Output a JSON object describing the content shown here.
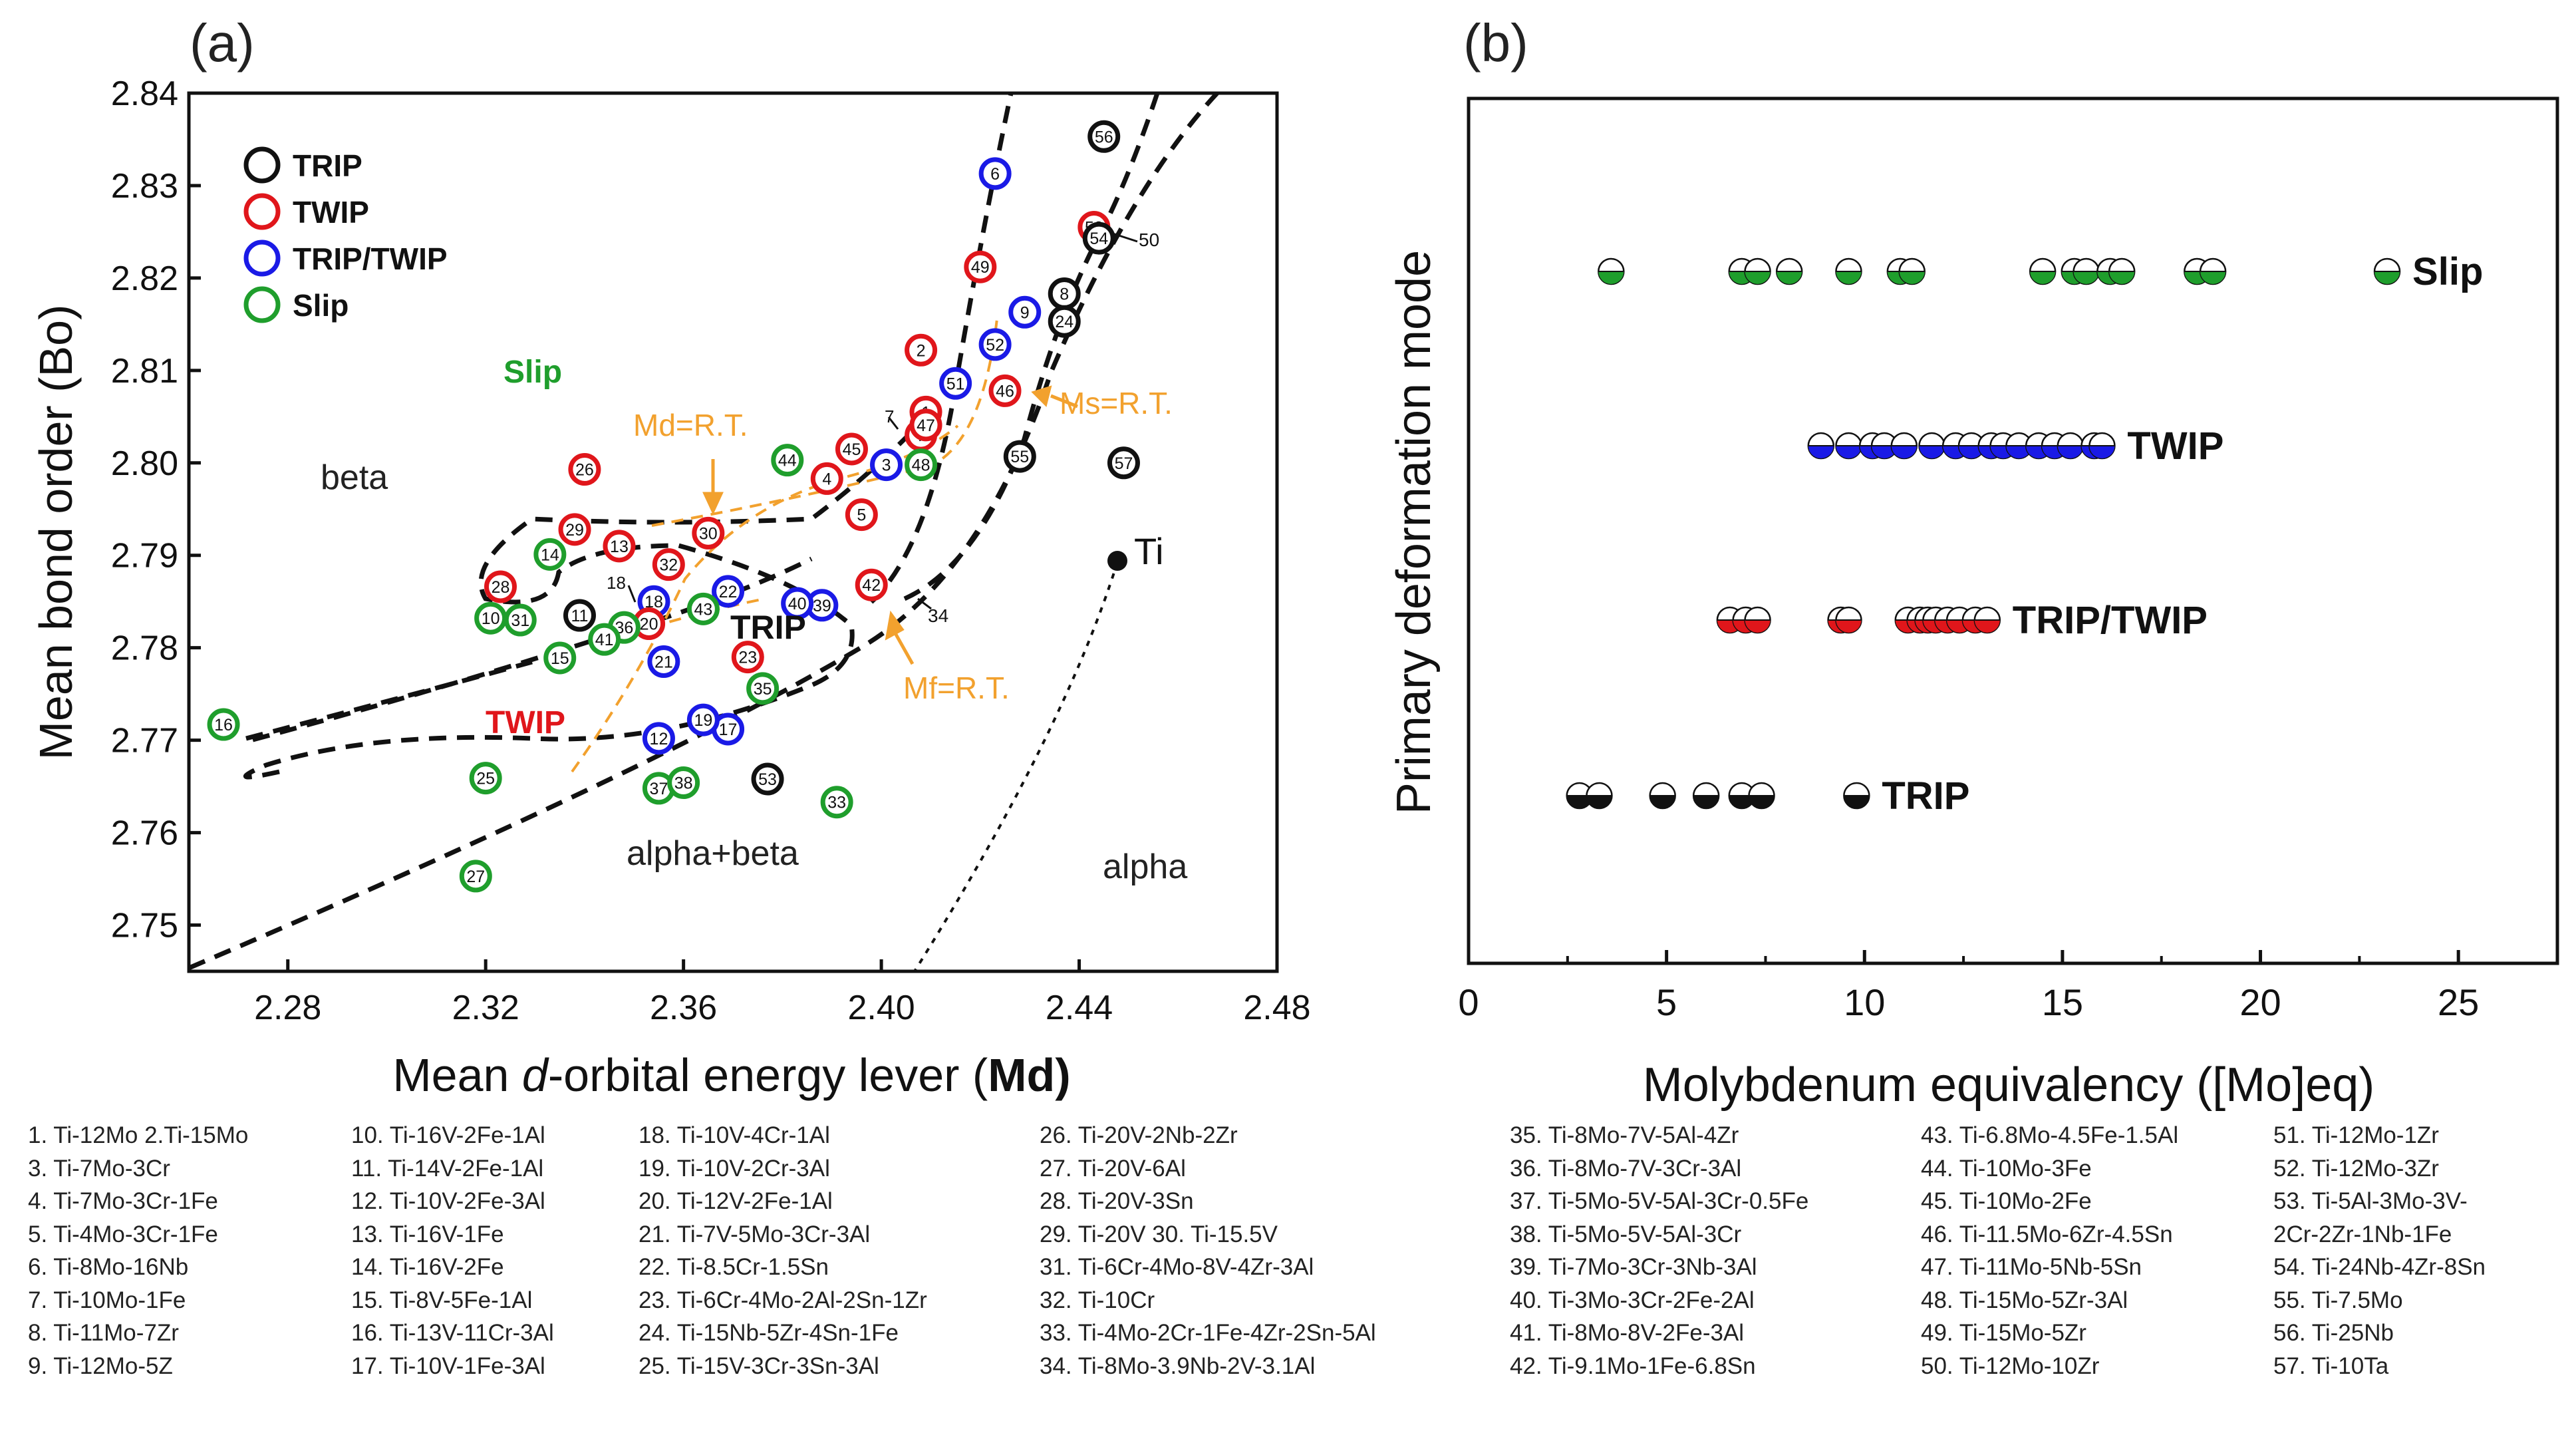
{
  "chart_data": [
    {
      "panel_label": "(a)",
      "type": "scatter",
      "xlabel_prefix": "Mean ",
      "xlabel_italic": "d",
      "xlabel_suffix": "-orbital energy lever (",
      "xlabel_bold": "Md",
      "xlabel_end": ")",
      "ylabel": "Mean bond order (Bo)",
      "xlim": [
        2.26,
        2.48
      ],
      "ylim": [
        2.745,
        2.84
      ],
      "xticks": [
        2.28,
        2.32,
        2.36,
        2.4,
        2.44,
        2.48
      ],
      "xtick_labels": [
        "2.28",
        "2.32",
        "2.36",
        "2.40",
        "2.44",
        "2.48"
      ],
      "yticks": [
        2.75,
        2.76,
        2.77,
        2.78,
        2.79,
        2.8,
        2.81,
        2.82,
        2.83,
        2.84
      ],
      "ytick_labels": [
        "2.75",
        "2.76",
        "2.77",
        "2.78",
        "2.79",
        "2.80",
        "2.81",
        "2.82",
        "2.83",
        "2.84"
      ],
      "legend": [
        {
          "name": "TRIP",
          "color": "#111111"
        },
        {
          "name": "TWIP",
          "color": "#e0161b"
        },
        {
          "name": "TRIP/TWIP",
          "color": "#1a1ae6"
        },
        {
          "name": "Slip",
          "color": "#1f9e2c"
        }
      ],
      "region_labels": {
        "slip": "Slip",
        "beta": "beta",
        "trip": "TRIP",
        "twip": "TWIP",
        "alpha_beta": "alpha+beta",
        "alpha": "alpha"
      },
      "annotations": {
        "md_rt": "Md=R.T.",
        "ms_rt": "Ms=R.T.",
        "mf_rt": "Mf=R.T.",
        "ti": "Ti"
      },
      "points": [
        {
          "id": "1",
          "x": 2.409,
          "y": 2.8055,
          "mode": "TWIP"
        },
        {
          "id": "2",
          "x": 2.408,
          "y": 2.8122,
          "mode": "TWIP"
        },
        {
          "id": "3",
          "x": 2.401,
          "y": 2.7998,
          "mode": "TRIP/TWIP"
        },
        {
          "id": "4",
          "x": 2.389,
          "y": 2.7983,
          "mode": "TWIP"
        },
        {
          "id": "5",
          "x": 2.396,
          "y": 2.7944,
          "mode": "TWIP"
        },
        {
          "id": "6",
          "x": 2.423,
          "y": 2.8313,
          "mode": "TRIP/TWIP"
        },
        {
          "id": "7",
          "x": 2.408,
          "y": 2.803,
          "mode": "TWIP"
        },
        {
          "id": "8",
          "x": 2.437,
          "y": 2.8183,
          "mode": "TRIP"
        },
        {
          "id": "9",
          "x": 2.429,
          "y": 2.8163,
          "mode": "TRIP/TWIP"
        },
        {
          "id": "10",
          "x": 2.321,
          "y": 2.7832,
          "mode": "Slip"
        },
        {
          "id": "11",
          "x": 2.339,
          "y": 2.7835,
          "mode": "TRIP"
        },
        {
          "id": "12",
          "x": 2.355,
          "y": 2.7702,
          "mode": "TRIP/TWIP"
        },
        {
          "id": "13",
          "x": 2.347,
          "y": 2.791,
          "mode": "TWIP"
        },
        {
          "id": "14",
          "x": 2.333,
          "y": 2.7901,
          "mode": "Slip"
        },
        {
          "id": "15",
          "x": 2.335,
          "y": 2.7789,
          "mode": "Slip"
        },
        {
          "id": "16",
          "x": 2.267,
          "y": 2.7717,
          "mode": "Slip"
        },
        {
          "id": "17",
          "x": 2.369,
          "y": 2.7712,
          "mode": "TRIP/TWIP"
        },
        {
          "id": "18",
          "x": 2.354,
          "y": 2.785,
          "mode": "TRIP/TWIP"
        },
        {
          "id": "19",
          "x": 2.364,
          "y": 2.7722,
          "mode": "TRIP/TWIP"
        },
        {
          "id": "20",
          "x": 2.353,
          "y": 2.7826,
          "mode": "TWIP"
        },
        {
          "id": "21",
          "x": 2.356,
          "y": 2.7785,
          "mode": "TRIP/TWIP"
        },
        {
          "id": "22",
          "x": 2.369,
          "y": 2.7861,
          "mode": "TRIP/TWIP"
        },
        {
          "id": "23",
          "x": 2.373,
          "y": 2.779,
          "mode": "TWIP"
        },
        {
          "id": "24",
          "x": 2.437,
          "y": 2.8153,
          "mode": "TRIP"
        },
        {
          "id": "25",
          "x": 2.32,
          "y": 2.7659,
          "mode": "Slip"
        },
        {
          "id": "26",
          "x": 2.34,
          "y": 2.7993,
          "mode": "TWIP"
        },
        {
          "id": "27",
          "x": 2.318,
          "y": 2.7553,
          "mode": "Slip"
        },
        {
          "id": "28",
          "x": 2.323,
          "y": 2.7866,
          "mode": "TWIP"
        },
        {
          "id": "29",
          "x": 2.338,
          "y": 2.7928,
          "mode": "TWIP"
        },
        {
          "id": "30",
          "x": 2.365,
          "y": 2.7924,
          "mode": "TWIP"
        },
        {
          "id": "31",
          "x": 2.327,
          "y": 2.783,
          "mode": "Slip"
        },
        {
          "id": "32",
          "x": 2.357,
          "y": 2.789,
          "mode": "TWIP"
        },
        {
          "id": "33",
          "x": 2.391,
          "y": 2.7633,
          "mode": "Slip"
        },
        {
          "id": "35",
          "x": 2.376,
          "y": 2.7756,
          "mode": "Slip"
        },
        {
          "id": "36",
          "x": 2.348,
          "y": 2.7822,
          "mode": "Slip"
        },
        {
          "id": "37",
          "x": 2.355,
          "y": 2.7648,
          "mode": "Slip"
        },
        {
          "id": "38",
          "x": 2.36,
          "y": 2.7654,
          "mode": "Slip"
        },
        {
          "id": "39",
          "x": 2.388,
          "y": 2.7846,
          "mode": "TRIP/TWIP"
        },
        {
          "id": "40",
          "x": 2.383,
          "y": 2.7848,
          "mode": "TRIP/TWIP"
        },
        {
          "id": "41",
          "x": 2.344,
          "y": 2.7809,
          "mode": "Slip"
        },
        {
          "id": "42",
          "x": 2.398,
          "y": 2.7868,
          "mode": "TWIP"
        },
        {
          "id": "43",
          "x": 2.364,
          "y": 2.7842,
          "mode": "Slip"
        },
        {
          "id": "44",
          "x": 2.381,
          "y": 2.8003,
          "mode": "Slip"
        },
        {
          "id": "45",
          "x": 2.394,
          "y": 2.8015,
          "mode": "TWIP"
        },
        {
          "id": "46",
          "x": 2.425,
          "y": 2.8078,
          "mode": "TWIP"
        },
        {
          "id": "47",
          "x": 2.409,
          "y": 2.8041,
          "mode": "TWIP"
        },
        {
          "id": "48",
          "x": 2.408,
          "y": 2.7998,
          "mode": "Slip"
        },
        {
          "id": "49",
          "x": 2.42,
          "y": 2.8212,
          "mode": "TWIP"
        },
        {
          "id": "50",
          "x": 2.443,
          "y": 2.8255,
          "mode": "TWIP"
        },
        {
          "id": "51",
          "x": 2.415,
          "y": 2.8086,
          "mode": "TRIP/TWIP"
        },
        {
          "id": "52",
          "x": 2.423,
          "y": 2.8128,
          "mode": "TRIP/TWIP"
        },
        {
          "id": "53",
          "x": 2.377,
          "y": 2.7658,
          "mode": "TRIP"
        },
        {
          "id": "54",
          "x": 2.444,
          "y": 2.8243,
          "mode": "TRIP"
        },
        {
          "id": "55",
          "x": 2.428,
          "y": 2.8007,
          "mode": "TRIP"
        },
        {
          "id": "56",
          "x": 2.445,
          "y": 2.8353,
          "mode": "TRIP"
        },
        {
          "id": "57",
          "x": 2.449,
          "y": 2.8,
          "mode": "TRIP"
        }
      ]
    },
    {
      "panel_label": "(b)",
      "type": "scatter",
      "xlabel": "Molybdenum equivalency ([Mo]eq)",
      "ylabel": "Primary deformation mode",
      "xlim": [
        0,
        27.5
      ],
      "xticks": [
        0,
        5,
        10,
        15,
        20,
        25
      ],
      "xtick_labels": [
        "0",
        "5",
        "10",
        "15",
        "20",
        "25"
      ],
      "series": [
        {
          "name": "Slip",
          "color": "#1f9e2c",
          "values": [
            3.6,
            6.9,
            7.3,
            8.1,
            9.6,
            10.9,
            11.2,
            14.5,
            15.3,
            15.6,
            16.2,
            16.5,
            18.4,
            18.8,
            23.2
          ]
        },
        {
          "name": "TWIP",
          "color": "#1a1ae6",
          "values": [
            8.9,
            9.6,
            10.2,
            10.5,
            11.0,
            11.7,
            12.3,
            12.7,
            13.2,
            13.5,
            13.9,
            14.4,
            14.8,
            15.2,
            15.8,
            16.0
          ]
        },
        {
          "name": "TRIP/TWIP",
          "color": "#e0161b",
          "values": [
            6.6,
            7.0,
            7.3,
            9.4,
            9.6,
            11.1,
            11.4,
            11.6,
            11.8,
            12.1,
            12.4,
            12.8,
            13.1
          ]
        },
        {
          "name": "TRIP",
          "color": "#111111",
          "values": [
            2.8,
            3.3,
            4.9,
            6.0,
            6.9,
            7.4,
            9.8
          ]
        }
      ]
    }
  ],
  "alloy_list": [
    [
      "1. Ti-12Mo    2.Ti-15Mo",
      "3. Ti-7Mo-3Cr",
      "4. Ti-7Mo-3Cr-1Fe",
      "5. Ti-4Mo-3Cr-1Fe",
      "6. Ti-8Mo-16Nb",
      "7. Ti-10Mo-1Fe",
      "8. Ti-11Mo-7Zr",
      "9. Ti-12Mo-5Z"
    ],
    [
      "10. Ti-16V-2Fe-1Al",
      "11. Ti-14V-2Fe-1Al",
      "12. Ti-10V-2Fe-3Al",
      "13. Ti-16V-1Fe",
      "14. Ti-16V-2Fe",
      "15. Ti-8V-5Fe-1Al",
      "16. Ti-13V-11Cr-3Al",
      "17. Ti-10V-1Fe-3Al"
    ],
    [
      "18. Ti-10V-4Cr-1Al",
      "19. Ti-10V-2Cr-3Al",
      "20. Ti-12V-2Fe-1Al",
      "21. Ti-7V-5Mo-3Cr-3Al",
      "22. Ti-8.5Cr-1.5Sn",
      "23. Ti-6Cr-4Mo-2Al-2Sn-1Zr",
      "24. Ti-15Nb-5Zr-4Sn-1Fe",
      "25. Ti-15V-3Cr-3Sn-3Al"
    ],
    [
      "26. Ti-20V-2Nb-2Zr",
      "27. Ti-20V-6Al",
      "28. Ti-20V-3Sn",
      "29. Ti-20V     30. Ti-15.5V",
      "31. Ti-6Cr-4Mo-8V-4Zr-3Al",
      "32. Ti-10Cr",
      "33. Ti-4Mo-2Cr-1Fe-4Zr-2Sn-5Al",
      "34. Ti-8Mo-3.9Nb-2V-3.1Al"
    ],
    [
      "35. Ti-8Mo-7V-5Al-4Zr",
      "36. Ti-8Mo-7V-3Cr-3Al",
      "37. Ti-5Mo-5V-5Al-3Cr-0.5Fe",
      "38. Ti-5Mo-5V-5Al-3Cr",
      "39. Ti-7Mo-3Cr-3Nb-3Al",
      "40. Ti-3Mo-3Cr-2Fe-2Al",
      "41. Ti-8Mo-8V-2Fe-3Al",
      "42. Ti-9.1Mo-1Fe-6.8Sn"
    ],
    [
      "43. Ti-6.8Mo-4.5Fe-1.5Al",
      "44. Ti-10Mo-3Fe",
      "45. Ti-10Mo-2Fe",
      "46. Ti-11.5Mo-6Zr-4.5Sn",
      "47. Ti-11Mo-5Nb-5Sn",
      "48. Ti-15Mo-5Zr-3Al",
      "49. Ti-15Mo-5Zr",
      "50. Ti-12Mo-10Zr"
    ],
    [
      "51. Ti-12Mo-1Zr",
      "52. Ti-12Mo-3Zr",
      "53. Ti-5Al-3Mo-3V-",
      "2Cr-2Zr-1Nb-1Fe",
      "54. Ti-24Nb-4Zr-8Sn",
      "55. Ti-7.5Mo",
      "56. Ti-25Nb",
      "57. Ti-10Ta"
    ]
  ]
}
